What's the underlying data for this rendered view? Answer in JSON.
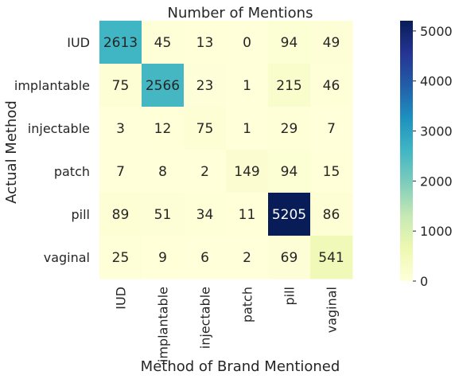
{
  "chart_data": {
    "type": "heatmap",
    "title": "Number of Mentions",
    "xlabel": "Method of Brand Mentioned",
    "ylabel": "Actual Method",
    "x_categories": [
      "IUD",
      "implantable",
      "injectable",
      "patch",
      "pill",
      "vaginal"
    ],
    "y_categories": [
      "IUD",
      "implantable",
      "injectable",
      "patch",
      "pill",
      "vaginal"
    ],
    "values": [
      [
        2613,
        45,
        13,
        0,
        94,
        49
      ],
      [
        75,
        2566,
        23,
        1,
        215,
        46
      ],
      [
        3,
        12,
        75,
        1,
        29,
        7
      ],
      [
        7,
        8,
        2,
        149,
        94,
        15
      ],
      [
        89,
        51,
        34,
        11,
        5205,
        86
      ],
      [
        25,
        9,
        6,
        2,
        69,
        541
      ]
    ],
    "colormap": "YlGnBu",
    "vmin": 0,
    "vmax": 5205,
    "colorbar_ticks": [
      0,
      1000,
      2000,
      3000,
      4000,
      5000
    ],
    "annotations": true,
    "grid": false
  }
}
